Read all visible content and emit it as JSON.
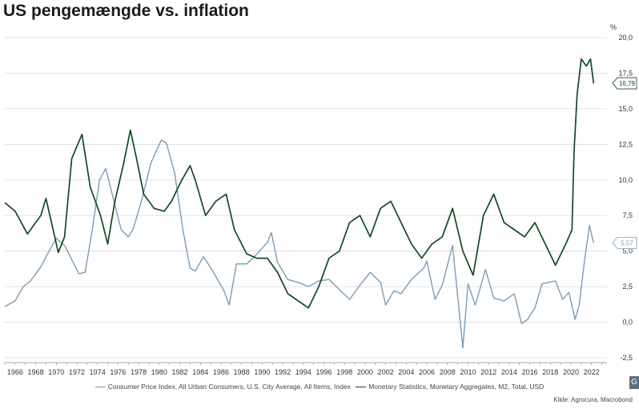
{
  "title": "US pengemængde vs. inflation",
  "source": "Kilde: Agrocura, Macrobond",
  "badge": "G",
  "chart_data": {
    "type": "line",
    "title": "US pengemængde vs. inflation",
    "ylabel": "%",
    "ylim": [
      -2.5,
      20
    ],
    "yticks": [
      -2.5,
      0,
      2.5,
      5,
      7.5,
      10,
      12.5,
      15,
      17.5,
      20
    ],
    "ytick_labels": [
      "-2,5",
      "0,0",
      "2,5",
      "5,0",
      "7,5",
      "10,0",
      "12,5",
      "15,0",
      "17,5",
      "20,0"
    ],
    "xlim": [
      1965,
      2023.5
    ],
    "xticks": [
      1966,
      1968,
      1970,
      1972,
      1974,
      1976,
      1978,
      1980,
      1982,
      1984,
      1986,
      1988,
      1990,
      1992,
      1994,
      1996,
      1998,
      2000,
      2002,
      2004,
      2006,
      2008,
      2010,
      2012,
      2014,
      2016,
      2018,
      2020,
      2022
    ],
    "grid": true,
    "legend_position": "bottom",
    "end_labels": [
      "16,79",
      "5,57"
    ],
    "series": [
      {
        "name": "Consumer Price Index, All Urban Consumers, U.S. City Average, All Items, Index",
        "color": "#7b9bb6",
        "end_label": "5,57",
        "points": [
          [
            1965,
            1.1
          ],
          [
            1966,
            1.5
          ],
          [
            1966.8,
            2.5
          ],
          [
            1967.5,
            2.9
          ],
          [
            1968.5,
            3.9
          ],
          [
            1969.3,
            5.0
          ],
          [
            1970,
            5.9
          ],
          [
            1970.8,
            5.4
          ],
          [
            1971.5,
            4.4
          ],
          [
            1972.2,
            3.4
          ],
          [
            1972.8,
            3.5
          ],
          [
            1973.5,
            6.5
          ],
          [
            1974.2,
            10.0
          ],
          [
            1974.8,
            10.8
          ],
          [
            1975.5,
            8.8
          ],
          [
            1976.3,
            6.5
          ],
          [
            1977,
            6.0
          ],
          [
            1977.5,
            6.6
          ],
          [
            1978.3,
            8.6
          ],
          [
            1979.2,
            11.2
          ],
          [
            1980.2,
            12.8
          ],
          [
            1980.7,
            12.6
          ],
          [
            1981.5,
            10.5
          ],
          [
            1982.3,
            6.5
          ],
          [
            1983,
            3.8
          ],
          [
            1983.5,
            3.6
          ],
          [
            1984.3,
            4.6
          ],
          [
            1985.2,
            3.6
          ],
          [
            1986.3,
            2.2
          ],
          [
            1986.8,
            1.2
          ],
          [
            1987.5,
            4.1
          ],
          [
            1988.5,
            4.1
          ],
          [
            1989.5,
            4.8
          ],
          [
            1990.5,
            5.6
          ],
          [
            1990.9,
            6.3
          ],
          [
            1991.5,
            4.2
          ],
          [
            1992.5,
            3.0
          ],
          [
            1993.5,
            2.8
          ],
          [
            1994.5,
            2.5
          ],
          [
            1995.5,
            2.9
          ],
          [
            1996.5,
            3.0
          ],
          [
            1997.5,
            2.3
          ],
          [
            1998.5,
            1.6
          ],
          [
            1999.5,
            2.6
          ],
          [
            2000.5,
            3.5
          ],
          [
            2001.5,
            2.8
          ],
          [
            2002,
            1.2
          ],
          [
            2002.8,
            2.2
          ],
          [
            2003.5,
            2.0
          ],
          [
            2004.5,
            3.0
          ],
          [
            2005.7,
            3.8
          ],
          [
            2006,
            4.3
          ],
          [
            2006.8,
            1.6
          ],
          [
            2007.5,
            2.6
          ],
          [
            2008.5,
            5.4
          ],
          [
            2009.5,
            -1.8
          ],
          [
            2010,
            2.7
          ],
          [
            2010.7,
            1.2
          ],
          [
            2011.7,
            3.7
          ],
          [
            2012.5,
            1.7
          ],
          [
            2013.5,
            1.5
          ],
          [
            2014.5,
            2.0
          ],
          [
            2015.2,
            -0.1
          ],
          [
            2015.8,
            0.2
          ],
          [
            2016.5,
            1.0
          ],
          [
            2017.2,
            2.7
          ],
          [
            2018.5,
            2.9
          ],
          [
            2019.2,
            1.6
          ],
          [
            2019.8,
            2.1
          ],
          [
            2020.4,
            0.2
          ],
          [
            2020.8,
            1.2
          ],
          [
            2021.3,
            4.2
          ],
          [
            2021.8,
            6.8
          ],
          [
            2022.2,
            5.57
          ]
        ]
      },
      {
        "name": "Monetary Statistics, Monetary Aggregates, M2, Total, USD",
        "color": "#0f4a26",
        "end_label": "16,79",
        "points": [
          [
            1965,
            8.4
          ],
          [
            1966,
            7.8
          ],
          [
            1967.2,
            6.2
          ],
          [
            1968.5,
            7.5
          ],
          [
            1969,
            8.7
          ],
          [
            1970.2,
            4.9
          ],
          [
            1970.8,
            6.0
          ],
          [
            1971.5,
            11.5
          ],
          [
            1972.5,
            13.2
          ],
          [
            1973.3,
            9.5
          ],
          [
            1974.3,
            7.5
          ],
          [
            1975,
            5.5
          ],
          [
            1975.7,
            8.5
          ],
          [
            1976.5,
            11.0
          ],
          [
            1977.2,
            13.5
          ],
          [
            1977.8,
            11.5
          ],
          [
            1978.5,
            9.0
          ],
          [
            1979.5,
            8.0
          ],
          [
            1980.5,
            7.8
          ],
          [
            1981.2,
            8.5
          ],
          [
            1982.2,
            10.0
          ],
          [
            1983,
            11.0
          ],
          [
            1983.5,
            10.0
          ],
          [
            1984.5,
            7.5
          ],
          [
            1985.5,
            8.5
          ],
          [
            1986.5,
            9.0
          ],
          [
            1987.3,
            6.5
          ],
          [
            1988.5,
            4.8
          ],
          [
            1989.5,
            4.5
          ],
          [
            1990.5,
            4.5
          ],
          [
            1991.5,
            3.5
          ],
          [
            1992.5,
            2.0
          ],
          [
            1993.5,
            1.5
          ],
          [
            1994.5,
            1.0
          ],
          [
            1995.5,
            2.5
          ],
          [
            1996.5,
            4.5
          ],
          [
            1997.5,
            5.0
          ],
          [
            1998.5,
            7.0
          ],
          [
            1999.5,
            7.5
          ],
          [
            2000.5,
            6.0
          ],
          [
            2001.5,
            8.0
          ],
          [
            2002.5,
            8.5
          ],
          [
            2003.5,
            7.0
          ],
          [
            2004.5,
            5.5
          ],
          [
            2005.5,
            4.5
          ],
          [
            2006.5,
            5.5
          ],
          [
            2007.5,
            6.0
          ],
          [
            2008.5,
            8.0
          ],
          [
            2009.5,
            5.0
          ],
          [
            2010.5,
            3.3
          ],
          [
            2011.5,
            7.5
          ],
          [
            2012.5,
            9.0
          ],
          [
            2013.5,
            7.0
          ],
          [
            2014.5,
            6.5
          ],
          [
            2015.5,
            6.0
          ],
          [
            2016.5,
            7.0
          ],
          [
            2017.5,
            5.5
          ],
          [
            2018.5,
            4.0
          ],
          [
            2019.5,
            5.5
          ],
          [
            2020.1,
            6.5
          ],
          [
            2020.3,
            12.0
          ],
          [
            2020.6,
            16.0
          ],
          [
            2021,
            18.5
          ],
          [
            2021.5,
            18.0
          ],
          [
            2021.9,
            18.5
          ],
          [
            2022.2,
            16.79
          ]
        ]
      }
    ]
  }
}
